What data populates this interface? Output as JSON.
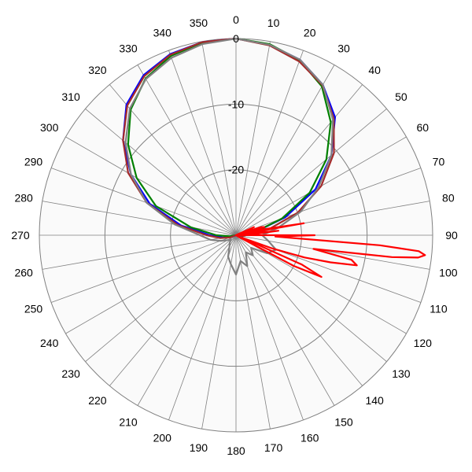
{
  "chart_data": {
    "type": "polar-line",
    "angle_unit": "degrees",
    "angle_zero": "top",
    "angle_direction": "clockwise",
    "angle_ticks": [
      0,
      10,
      20,
      30,
      40,
      50,
      60,
      70,
      80,
      90,
      100,
      110,
      120,
      130,
      140,
      150,
      160,
      170,
      180,
      190,
      200,
      210,
      220,
      230,
      240,
      250,
      260,
      270,
      280,
      290,
      300,
      310,
      320,
      330,
      340,
      350
    ],
    "angle_labels": [
      "0",
      "10",
      "20",
      "30",
      "40",
      "50",
      "60",
      "70",
      "80",
      "90",
      "100",
      "110",
      "120",
      "130",
      "140",
      "150",
      "160",
      "170",
      "180",
      "190",
      "200",
      "210",
      "220",
      "230",
      "240",
      "250",
      "260",
      "270",
      "280",
      "290",
      "300",
      "310",
      "320",
      "330",
      "340",
      "350"
    ],
    "radial_range": [
      -30,
      0
    ],
    "radial_ticks": [
      0,
      -10,
      -20
    ],
    "radial_labels": [
      "0",
      "-10",
      "-20"
    ],
    "grid": true,
    "series": [
      {
        "color": "#0000ff",
        "theta": [
          0,
          10,
          20,
          30,
          40,
          50,
          60,
          70,
          80,
          90,
          100,
          110,
          120,
          130,
          140,
          150,
          160,
          170,
          180,
          190,
          200,
          210,
          220,
          230,
          240,
          250,
          260,
          270,
          280,
          290,
          300,
          310,
          320,
          330,
          340,
          350
        ],
        "r": [
          0,
          -0.5,
          -1.5,
          -3.5,
          -6.5,
          -11,
          -16,
          -22,
          -27,
          -29,
          -29.5,
          -30,
          -30,
          -30,
          -30,
          -30,
          -30,
          -30,
          -30,
          -30,
          -30,
          -30,
          -30,
          -30,
          -30,
          -29.5,
          -28,
          -26,
          -21.5,
          -16,
          -11.5,
          -7.5,
          -4,
          -1.8,
          -0.6,
          -0.1
        ]
      },
      {
        "color": "#008000",
        "theta": [
          0,
          10,
          20,
          30,
          40,
          50,
          60,
          70,
          80,
          90,
          100,
          110,
          120,
          130,
          140,
          150,
          160,
          170,
          180,
          190,
          200,
          210,
          220,
          230,
          240,
          250,
          260,
          270,
          280,
          290,
          300,
          310,
          320,
          330,
          340,
          350
        ],
        "r": [
          0,
          -0.4,
          -1.6,
          -3.8,
          -7.5,
          -12,
          -17,
          -22.5,
          -27,
          -29.5,
          -30,
          -30,
          -30,
          -30,
          -30,
          -30,
          -30,
          -30,
          -30,
          -30,
          -30,
          -30,
          -30,
          -30,
          -30,
          -30,
          -29,
          -27,
          -23,
          -17,
          -12.5,
          -8.5,
          -5,
          -2.4,
          -0.9,
          -0.2
        ]
      },
      {
        "color": "#a52a2a",
        "theta": [
          0,
          10,
          20,
          30,
          40,
          50,
          60,
          70,
          80,
          90,
          100,
          110,
          120,
          130,
          140,
          150,
          160,
          170,
          180,
          190,
          200,
          210,
          220,
          230,
          240,
          250,
          260,
          270,
          280,
          290,
          300,
          310,
          320,
          330,
          340,
          350
        ],
        "r": [
          0,
          -0.6,
          -1.8,
          -3.6,
          -6.8,
          -10.5,
          -15,
          -20,
          -25,
          -28.5,
          -29,
          -30,
          -30,
          -30,
          -30,
          -30,
          -30,
          -30,
          -30,
          -30,
          -30,
          -30,
          -30,
          -30,
          -30,
          -29,
          -27.5,
          -25.5,
          -21,
          -15.5,
          -11,
          -7.5,
          -4.2,
          -2,
          -0.7,
          -0.1
        ]
      },
      {
        "color": "#808080",
        "theta": [
          0,
          10,
          20,
          30,
          40,
          50,
          60,
          70,
          80,
          90,
          100,
          110,
          120,
          130,
          140,
          150,
          160,
          170,
          180,
          190,
          200,
          210,
          220,
          230,
          240,
          250,
          260,
          270,
          280,
          290,
          300,
          310,
          320,
          330,
          340,
          350
        ],
        "r": [
          0,
          -0.5,
          -1.5,
          -3.5,
          -7,
          -11,
          -15.5,
          -19.5,
          -23.5,
          -26,
          -25,
          -23.5,
          -24.5,
          -27,
          -26,
          -27,
          -25,
          -26,
          -24,
          -25.5,
          -26.5,
          -28,
          -28.5,
          -29,
          -28.5,
          -27.5,
          -26,
          -24.5,
          -20.5,
          -15.5,
          -11.5,
          -8,
          -4.8,
          -2.5,
          -1.2,
          -0.4
        ]
      },
      {
        "color": "#ff0000",
        "theta": [
          0,
          30,
          50,
          60,
          64,
          66,
          68,
          70,
          72,
          74,
          76,
          78,
          80,
          82,
          84,
          86,
          88,
          90,
          92,
          94,
          95,
          96,
          97,
          98,
          99,
          100,
          102,
          104,
          106,
          108,
          110,
          112,
          114,
          116,
          118,
          120,
          130,
          150,
          180,
          210,
          240,
          270,
          300,
          330
        ],
        "r": [
          -30,
          -30,
          -30,
          -30,
          -29.7,
          -27,
          -28.5,
          -29.5,
          -26,
          -25.5,
          -29.5,
          -25.5,
          -19.5,
          -29.5,
          -23.5,
          -27,
          -29.5,
          -18,
          -24,
          -8,
          -2,
          -1,
          -2,
          -6,
          -14,
          -18,
          -12,
          -11,
          -15,
          -19,
          -24,
          -29,
          -19,
          -15.5,
          -20,
          -29.5,
          -30,
          -30,
          -30,
          -30,
          -30,
          -30,
          -30,
          -30
        ]
      }
    ]
  }
}
